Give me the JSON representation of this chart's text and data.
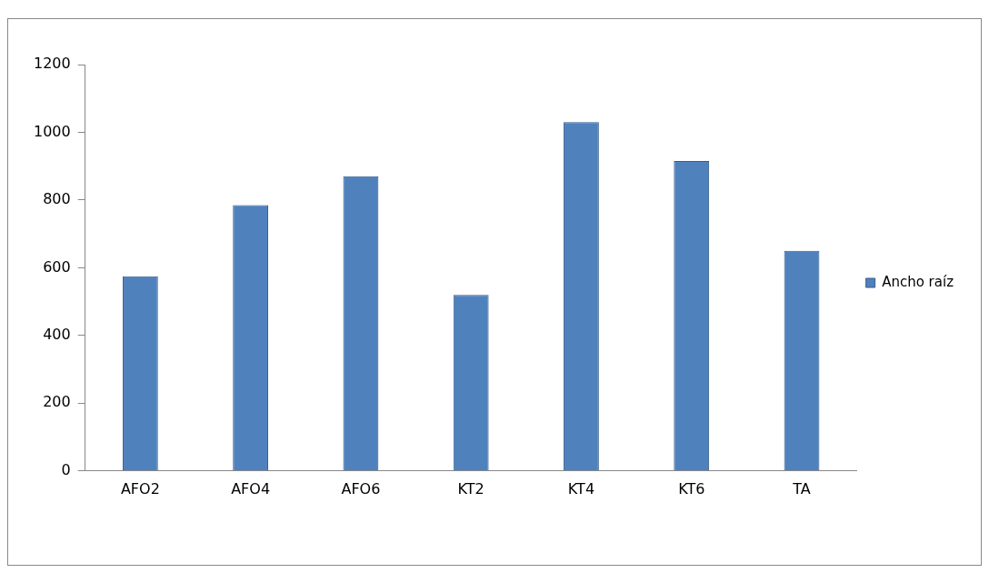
{
  "chart_data": {
    "type": "bar",
    "categories": [
      "AFO2",
      "AFO4",
      "AFO6",
      "KT2",
      "KT4",
      "KT6",
      "TA"
    ],
    "series": [
      {
        "name": "Ancho raíz",
        "color": "#4f81bd",
        "values": [
          575,
          785,
          870,
          520,
          1030,
          915,
          650
        ]
      }
    ],
    "ylim": [
      0,
      1200
    ],
    "yticks": [
      0,
      200,
      400,
      600,
      800,
      1000,
      1200
    ],
    "grid": false,
    "legend": "right"
  }
}
